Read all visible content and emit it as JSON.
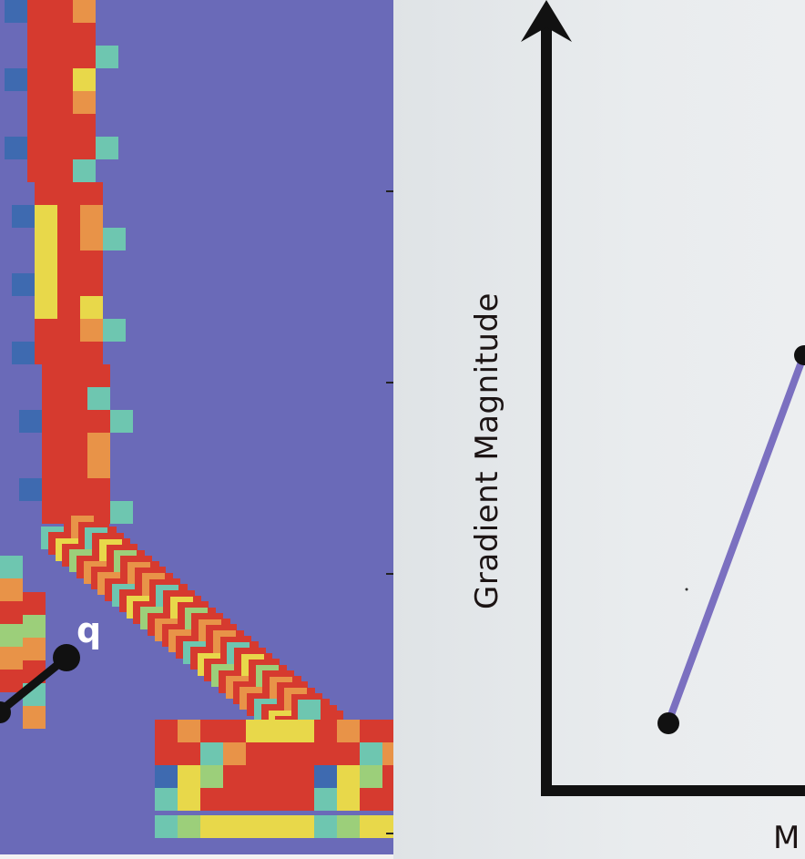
{
  "heatmap": {
    "point_label": "q",
    "palette": {
      "background": "#5a55a5",
      "cool": "#6a6ab8",
      "blue": "#3e6ab0",
      "teal": "#6ec6b0",
      "green": "#9ccf7a",
      "yellow": "#e8d84a",
      "orange": "#e89348",
      "red": "#d63a2f",
      "marker": "#111111"
    }
  },
  "plot": {
    "ylabel": "Gradient Magnitude",
    "xlabel_visible": "M",
    "axis_color": "#111111",
    "line_color": "#7b70c0",
    "marker_color": "#111111"
  }
}
